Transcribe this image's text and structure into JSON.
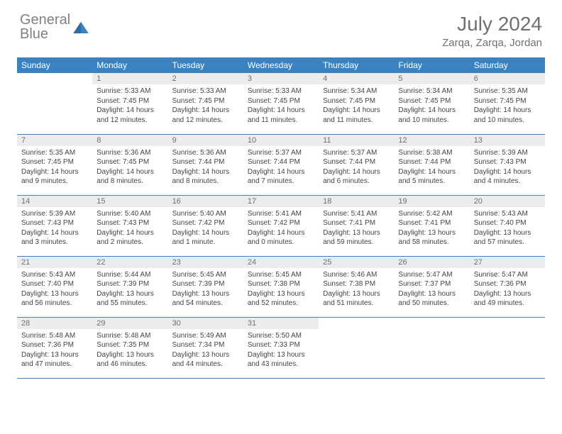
{
  "brand": {
    "part1": "General",
    "part2": "Blue"
  },
  "title": "July 2024",
  "location": "Zarqa, Zarqa, Jordan",
  "colors": {
    "header_bg": "#3b83c0",
    "daynum_bg": "#ececec",
    "text": "#444444",
    "muted": "#707070",
    "rule": "#3b83c0"
  },
  "weekdays": [
    "Sunday",
    "Monday",
    "Tuesday",
    "Wednesday",
    "Thursday",
    "Friday",
    "Saturday"
  ],
  "weeks": [
    [
      null,
      {
        "d": "1",
        "sr": "5:33 AM",
        "ss": "7:45 PM",
        "dl": "14 hours and 12 minutes."
      },
      {
        "d": "2",
        "sr": "5:33 AM",
        "ss": "7:45 PM",
        "dl": "14 hours and 12 minutes."
      },
      {
        "d": "3",
        "sr": "5:33 AM",
        "ss": "7:45 PM",
        "dl": "14 hours and 11 minutes."
      },
      {
        "d": "4",
        "sr": "5:34 AM",
        "ss": "7:45 PM",
        "dl": "14 hours and 11 minutes."
      },
      {
        "d": "5",
        "sr": "5:34 AM",
        "ss": "7:45 PM",
        "dl": "14 hours and 10 minutes."
      },
      {
        "d": "6",
        "sr": "5:35 AM",
        "ss": "7:45 PM",
        "dl": "14 hours and 10 minutes."
      }
    ],
    [
      {
        "d": "7",
        "sr": "5:35 AM",
        "ss": "7:45 PM",
        "dl": "14 hours and 9 minutes."
      },
      {
        "d": "8",
        "sr": "5:36 AM",
        "ss": "7:45 PM",
        "dl": "14 hours and 8 minutes."
      },
      {
        "d": "9",
        "sr": "5:36 AM",
        "ss": "7:44 PM",
        "dl": "14 hours and 8 minutes."
      },
      {
        "d": "10",
        "sr": "5:37 AM",
        "ss": "7:44 PM",
        "dl": "14 hours and 7 minutes."
      },
      {
        "d": "11",
        "sr": "5:37 AM",
        "ss": "7:44 PM",
        "dl": "14 hours and 6 minutes."
      },
      {
        "d": "12",
        "sr": "5:38 AM",
        "ss": "7:44 PM",
        "dl": "14 hours and 5 minutes."
      },
      {
        "d": "13",
        "sr": "5:39 AM",
        "ss": "7:43 PM",
        "dl": "14 hours and 4 minutes."
      }
    ],
    [
      {
        "d": "14",
        "sr": "5:39 AM",
        "ss": "7:43 PM",
        "dl": "14 hours and 3 minutes."
      },
      {
        "d": "15",
        "sr": "5:40 AM",
        "ss": "7:43 PM",
        "dl": "14 hours and 2 minutes."
      },
      {
        "d": "16",
        "sr": "5:40 AM",
        "ss": "7:42 PM",
        "dl": "14 hours and 1 minute."
      },
      {
        "d": "17",
        "sr": "5:41 AM",
        "ss": "7:42 PM",
        "dl": "14 hours and 0 minutes."
      },
      {
        "d": "18",
        "sr": "5:41 AM",
        "ss": "7:41 PM",
        "dl": "13 hours and 59 minutes."
      },
      {
        "d": "19",
        "sr": "5:42 AM",
        "ss": "7:41 PM",
        "dl": "13 hours and 58 minutes."
      },
      {
        "d": "20",
        "sr": "5:43 AM",
        "ss": "7:40 PM",
        "dl": "13 hours and 57 minutes."
      }
    ],
    [
      {
        "d": "21",
        "sr": "5:43 AM",
        "ss": "7:40 PM",
        "dl": "13 hours and 56 minutes."
      },
      {
        "d": "22",
        "sr": "5:44 AM",
        "ss": "7:39 PM",
        "dl": "13 hours and 55 minutes."
      },
      {
        "d": "23",
        "sr": "5:45 AM",
        "ss": "7:39 PM",
        "dl": "13 hours and 54 minutes."
      },
      {
        "d": "24",
        "sr": "5:45 AM",
        "ss": "7:38 PM",
        "dl": "13 hours and 52 minutes."
      },
      {
        "d": "25",
        "sr": "5:46 AM",
        "ss": "7:38 PM",
        "dl": "13 hours and 51 minutes."
      },
      {
        "d": "26",
        "sr": "5:47 AM",
        "ss": "7:37 PM",
        "dl": "13 hours and 50 minutes."
      },
      {
        "d": "27",
        "sr": "5:47 AM",
        "ss": "7:36 PM",
        "dl": "13 hours and 49 minutes."
      }
    ],
    [
      {
        "d": "28",
        "sr": "5:48 AM",
        "ss": "7:36 PM",
        "dl": "13 hours and 47 minutes."
      },
      {
        "d": "29",
        "sr": "5:48 AM",
        "ss": "7:35 PM",
        "dl": "13 hours and 46 minutes."
      },
      {
        "d": "30",
        "sr": "5:49 AM",
        "ss": "7:34 PM",
        "dl": "13 hours and 44 minutes."
      },
      {
        "d": "31",
        "sr": "5:50 AM",
        "ss": "7:33 PM",
        "dl": "13 hours and 43 minutes."
      },
      null,
      null,
      null
    ]
  ],
  "labels": {
    "sunrise": "Sunrise:",
    "sunset": "Sunset:",
    "daylight": "Daylight:"
  }
}
